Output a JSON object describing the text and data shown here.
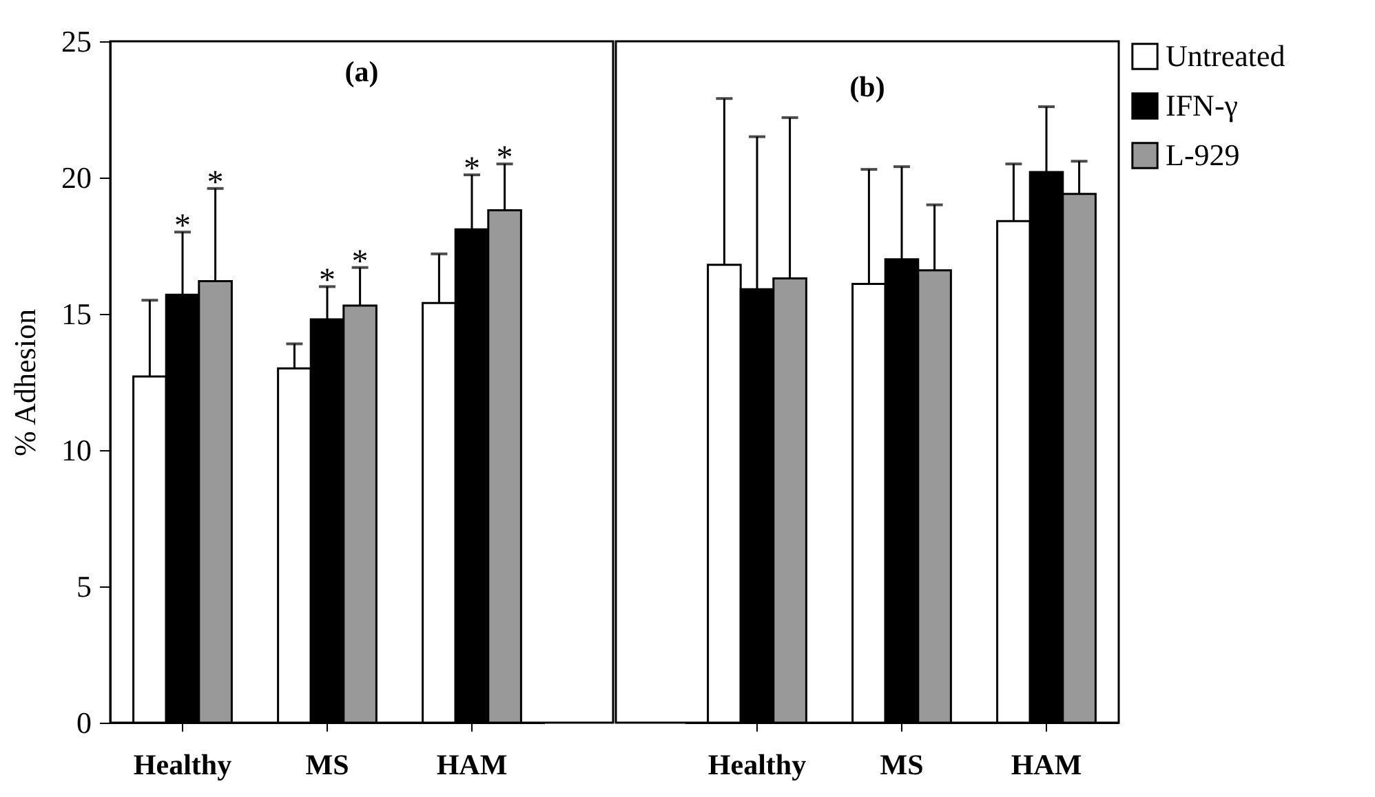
{
  "chart_data": [
    {
      "type": "bar",
      "title": "(a)",
      "ylabel": "% Adhesion",
      "categories": [
        "Healthy",
        "MS",
        "HAM"
      ],
      "ylim": [
        0,
        25
      ],
      "yticks": [
        0,
        5,
        10,
        15,
        20,
        25
      ],
      "grid": false,
      "series": [
        {
          "name": "Untreated",
          "color": "#ffffff",
          "values": [
            12.7,
            13.0,
            15.4
          ],
          "errors": [
            2.8,
            0.9,
            1.8
          ]
        },
        {
          "name": "IFN-γ",
          "color": "#000000",
          "values": [
            15.7,
            14.8,
            18.1
          ],
          "errors": [
            2.3,
            1.2,
            2.0
          ]
        },
        {
          "name": "L-929",
          "color": "#999999",
          "values": [
            16.2,
            15.3,
            18.8
          ],
          "errors": [
            3.4,
            1.4,
            1.7
          ]
        }
      ],
      "annotations": [
        "*",
        "*",
        "*",
        "*",
        "*",
        "*"
      ]
    },
    {
      "type": "bar",
      "title": "(b)",
      "categories": [
        "Healthy",
        "MS",
        "HAM"
      ],
      "ylim": [
        0,
        25
      ],
      "yticks": [
        0,
        5,
        10,
        15,
        20,
        25
      ],
      "grid": false,
      "tick_labels": "x",
      "legend": "top right",
      "series": [
        {
          "name": "Untreated",
          "color": "#ffffff",
          "values": [
            16.8,
            16.1,
            18.4
          ],
          "errors": [
            6.1,
            4.2,
            2.1
          ]
        },
        {
          "name": "IFN-γ",
          "color": "#000000",
          "values": [
            15.9,
            17.0,
            20.2
          ],
          "errors": [
            5.6,
            3.4,
            2.4
          ]
        },
        {
          "name": "L-929",
          "color": "#999999",
          "values": [
            16.3,
            16.6,
            19.4
          ],
          "errors": [
            5.9,
            2.4,
            1.2
          ]
        }
      ]
    }
  ]
}
